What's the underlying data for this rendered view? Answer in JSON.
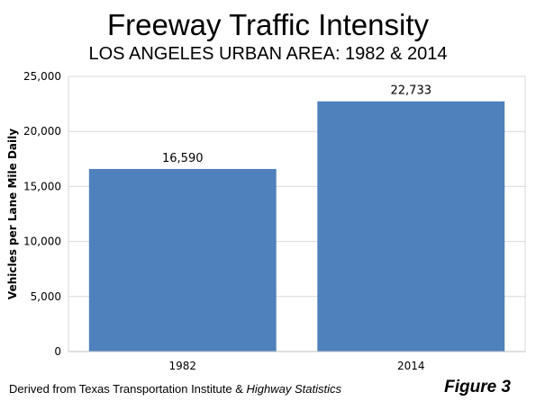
{
  "chart_data": {
    "type": "bar",
    "title": "Freeway Traffic Intensity",
    "subtitle": "LOS ANGELES URBAN AREA: 1982 & 2014",
    "xlabel": "",
    "ylabel": "Vehicles per Lane Mile Daily",
    "categories": [
      "1982",
      "2014"
    ],
    "values": [
      16590,
      22733
    ],
    "data_labels": [
      "16,590",
      "22,733"
    ],
    "ylim": [
      0,
      25000
    ],
    "yticks": [
      0,
      5000,
      10000,
      15000,
      20000,
      25000
    ],
    "ytick_labels": [
      "0",
      "5,000",
      "10,000",
      "15,000",
      "20,000",
      "25,000"
    ],
    "grid": true,
    "bar_color": "#4f81bd",
    "grid_color": "#d9d9d9"
  },
  "footer": {
    "source_prefix": "Derived from Texas Transportation Institute  & ",
    "source_italic": "Highway Statistics",
    "figure_label": "Figure 3"
  }
}
